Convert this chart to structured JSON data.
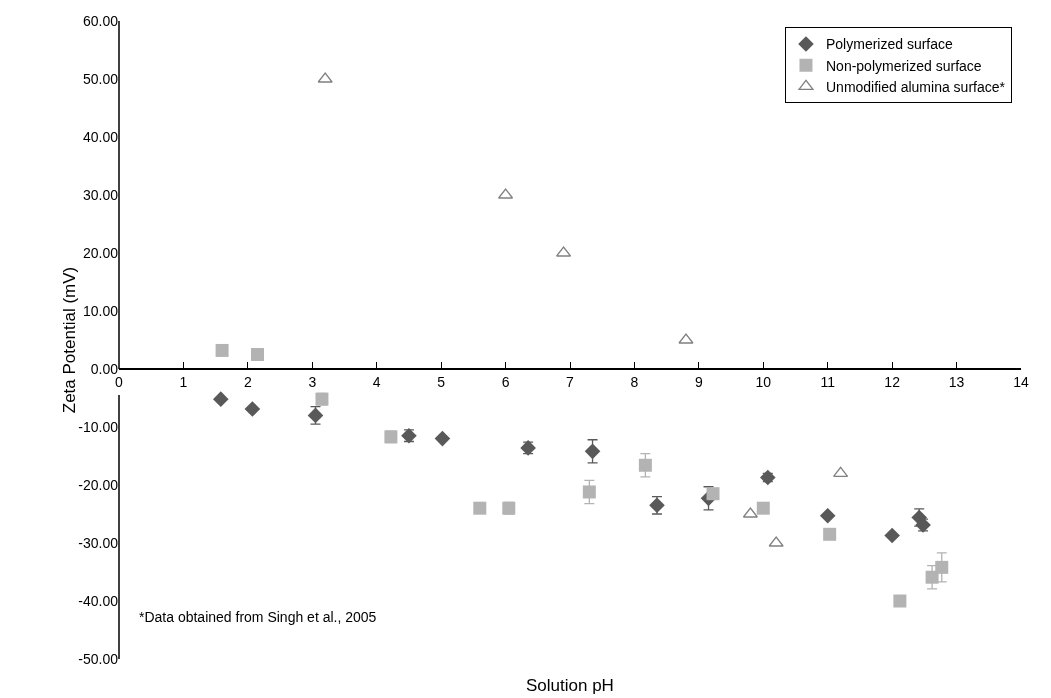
{
  "chart_data": {
    "type": "scatter",
    "xlabel": "Solution pH",
    "ylabel": "Zeta Potential (mV)",
    "annotations": [
      "*Data obtained from Singh et al., 2005"
    ],
    "xlim": [
      0,
      14
    ],
    "xticks": [
      0,
      1,
      2,
      3,
      4,
      5,
      6,
      7,
      8,
      9,
      10,
      11,
      12,
      13,
      14
    ],
    "ylim": [
      -50,
      60
    ],
    "yticks": [
      {
        "value": -50,
        "label": "-50.00"
      },
      {
        "value": -40,
        "label": "-40.00"
      },
      {
        "value": -30,
        "label": "-30.00"
      },
      {
        "value": -20,
        "label": "-20.00"
      },
      {
        "value": -10,
        "label": "-10.00"
      },
      {
        "value": 0,
        "label": "0.00"
      },
      {
        "value": 10,
        "label": "10.00"
      },
      {
        "value": 20,
        "label": "20.00"
      },
      {
        "value": 30,
        "label": "30.00"
      },
      {
        "value": 40,
        "label": "40.00"
      },
      {
        "value": 50,
        "label": "50.00"
      },
      {
        "value": 60,
        "label": "60.00"
      }
    ],
    "grid": false,
    "legend": "top right",
    "series": [
      {
        "name": "Polymerized surface",
        "color": "#595959",
        "marker": "diamond",
        "x": [
          1.58,
          2.07,
          3.05,
          4.5,
          5.02,
          6.35,
          7.35,
          8.35,
          9.15,
          10.07,
          11.0,
          12.0,
          12.42,
          12.48
        ],
        "values": [
          -5.2,
          -6.9,
          -8.0,
          -11.5,
          -12.0,
          -13.6,
          -14.2,
          -23.5,
          -22.3,
          -18.7,
          -25.3,
          -28.7,
          -25.6,
          -26.9
        ],
        "errors": [
          null,
          null,
          1.5,
          1,
          null,
          1,
          2,
          1.5,
          2,
          0.7,
          null,
          null,
          1.5,
          1
        ]
      },
      {
        "name": "Non-polymerized surface",
        "color": "#b3b3b3",
        "marker": "square",
        "x": [
          1.6,
          2.15,
          3.15,
          4.22,
          5.6,
          6.05,
          7.3,
          8.17,
          9.22,
          10.0,
          11.03,
          12.12,
          12.62,
          12.77
        ],
        "values": [
          3.2,
          2.5,
          -5.2,
          -11.7,
          -24.0,
          -24.0,
          -21.2,
          -16.6,
          -21.5,
          -24.0,
          -28.5,
          -40.0,
          -35.9,
          -34.2
        ],
        "errors": [
          null,
          null,
          1,
          1,
          null,
          1,
          2,
          2,
          null,
          null,
          null,
          null,
          2,
          2.5
        ]
      },
      {
        "name": "Unmodified alumina surface*",
        "color": "#808080",
        "marker": "triangle",
        "x": [
          3.2,
          6.0,
          6.9,
          8.8,
          9.8,
          10.2,
          11.2
        ],
        "values": [
          50,
          30,
          20,
          5,
          -25,
          -30,
          -18
        ]
      }
    ]
  }
}
